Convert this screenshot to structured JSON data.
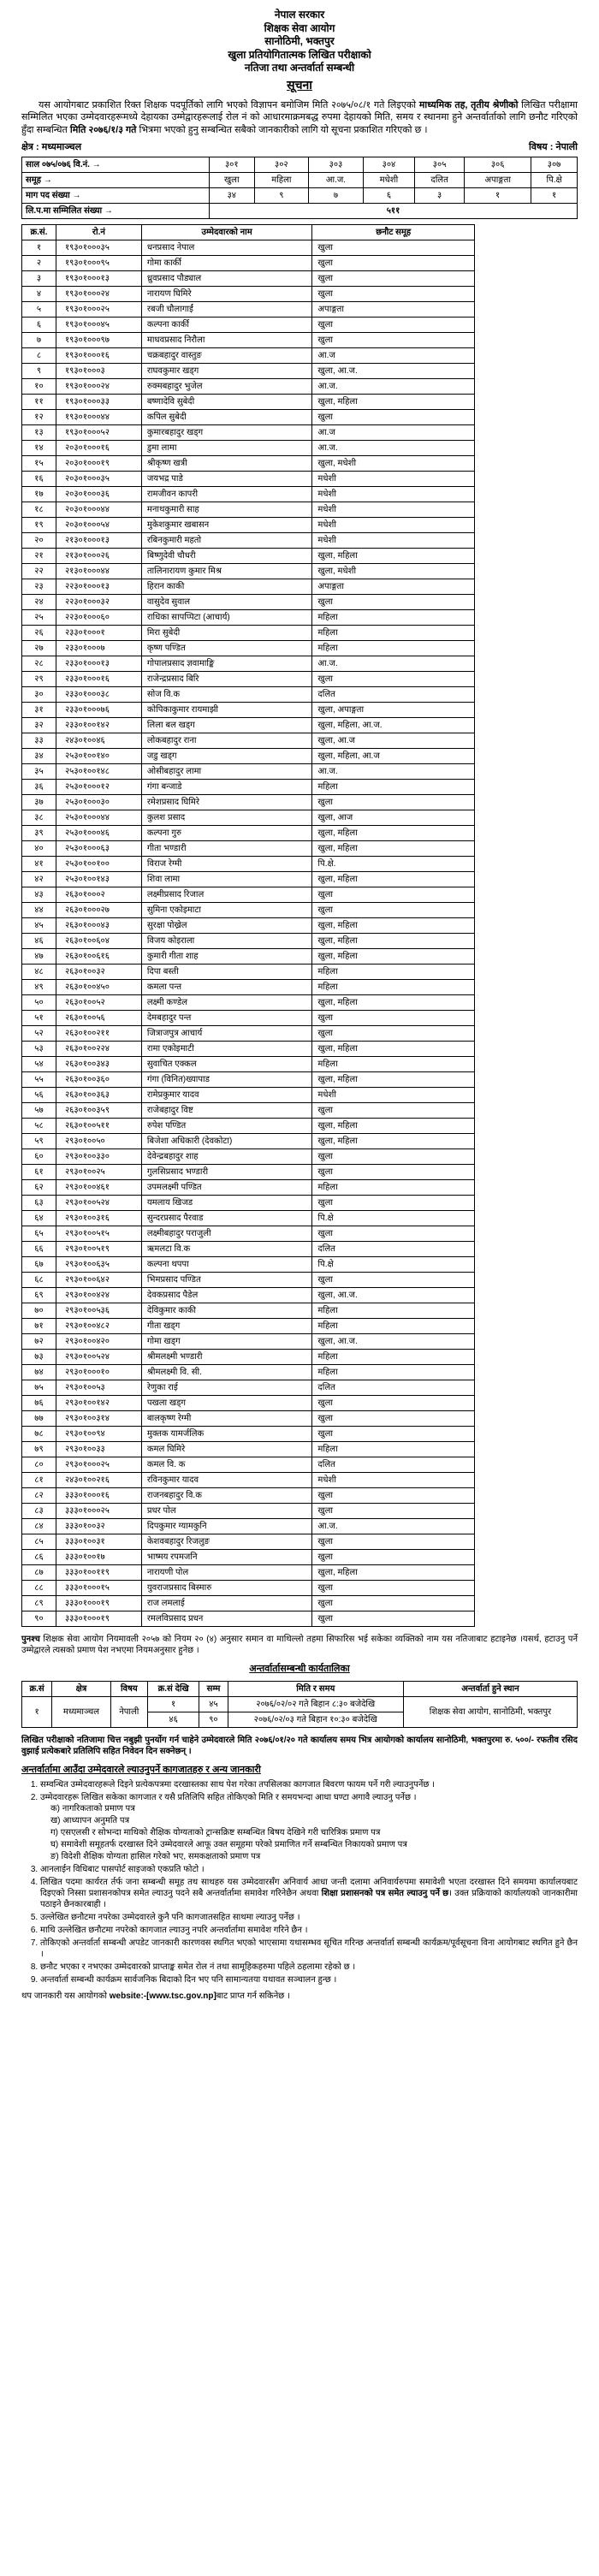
{
  "header": {
    "l1": "नेपाल सरकार",
    "l2": "शिक्षक सेवा आयोग",
    "l3": "सानोठिमी, भक्तपुर",
    "l4": "खुला प्रतियोगितात्मक लिखित परीक्षाको",
    "l5": "नतिजा तथा अन्तर्वार्ता सम्बन्धी",
    "l6": "सूचना"
  },
  "notice": "यस आयोगबाट प्रकाशित रिक्त शिक्षक पदपूर्तिको लागि भएको विज्ञापन बमोजिम मिति २०७५/०८/१ गते लिइएको <b>माध्यमिक तह, तृतीय श्रेणीको</b> लिखित परीक्षामा सम्मिलित भएका उम्मेदवारहरूमध्ये देहायका उम्मेद्वारहरूलाई रोल नं को आधारमाक्रमबद्ध रुपमा देहायको मिति, समय र स्थानमा हुने अन्तर्वार्ताको लागि छनौट गरिएको हुँदा सम्बन्धित <b>मिति २०७६/१/३ गते</b> भित्रमा भएको हुनु सम्बन्धित सबैको जानकारीको लागि यो सूचना प्रकाशित गरिएको छ ।",
  "meta": {
    "level_label": "क्षेत्र :",
    "level": "मध्यमाञ्चल",
    "subject_label": "विषय :",
    "subject": "नेपाली"
  },
  "vacancy": {
    "year_label": "साल  ०७५/०७६  वि.नं.  →",
    "cols": [
      "३०१",
      "३०२",
      "३०३",
      "३०४",
      "३०५",
      "३०६",
      "३०७"
    ],
    "group_label": "समूह  →",
    "groups": [
      "खुला",
      "महिला",
      "आ.ज.",
      "मधेशी",
      "दलित",
      "अपाङ्गता",
      "पि.क्षे"
    ],
    "demand_label": "माग पद संख्या  →",
    "demand": [
      "३४",
      "९",
      "७",
      "६",
      "३",
      "१",
      "१"
    ],
    "exam_label": "लि.प.मा सम्मिलित संख्या  →",
    "exam_total": "५११"
  },
  "table": {
    "headers": [
      "क्र.सं.",
      "रो.नं",
      "उम्मेदवारको नाम",
      "छनौट समूह"
    ],
    "rows": [
      [
        "१",
        "१९३०१०००३५",
        "धनप्रसाद नेपाल",
        "खुला"
      ],
      [
        "२",
        "१९३०१०००९५",
        "गोमा कार्की",
        "खुला"
      ],
      [
        "३",
        "१९३०१०००१३",
        "ध्रुवप्रसाद पौड्याल",
        "खुला"
      ],
      [
        "४",
        "१९३०१०००२४",
        "नारायण घिमिरे",
        "खुला"
      ],
      [
        "५",
        "१९३०१०००२५",
        "रबजी चौलागाईं",
        "अपाङ्गता"
      ],
      [
        "६",
        "१९३०१०००४५",
        "कल्पना कार्की",
        "खुला"
      ],
      [
        "७",
        "१९३०१०००९७",
        "माधवप्रसाद निरौला",
        "खुला"
      ],
      [
        "८",
        "१९३०१०००१६",
        "चक्रबहादुर वास्तुङ",
        "आ.ज"
      ],
      [
        "९",
        "१९३०१०००३",
        "राघवकुमार खड्ग",
        "खुला, आ.ज."
      ],
      [
        "१०",
        "१९३०१०००२४",
        "रुक्मबहादुर भुजेल",
        "आ.ज."
      ],
      [
        "११",
        "१९३०१०००३३",
        "बष्णादेवि सुबेदी",
        "खुला, महिला"
      ],
      [
        "१२",
        "१९३०१०००४४",
        "कपिल सुबेदी",
        "खुला"
      ],
      [
        "१३",
        "१९३०१०००५२",
        "कुमारबहादुर खड्ग",
        "आ.ज"
      ],
      [
        "१४",
        "२०३०१०००१६",
        "डुमा लामा",
        "आ.ज."
      ],
      [
        "१५",
        "२०३०१०००१९",
        "श्रीकृष्ण खत्री",
        "खुला, मधेशी"
      ],
      [
        "१६",
        "२०३०१०००३५",
        "जयभद्र पाडे",
        "मधेशी"
      ],
      [
        "१७",
        "२०३०१०००३६",
        "रामजीवन कापरी",
        "मधेशी"
      ],
      [
        "१८",
        "२०३०१०००४४",
        "मनाथकुमारी साह",
        "मधेशी"
      ],
      [
        "१९",
        "२०३०१०००५४",
        "मुकेशकुमार खबासन",
        "मधेशी"
      ],
      [
        "२०",
        "२१३०१०००१३",
        "रबिनकुमारी महतो",
        "मधेशी"
      ],
      [
        "२१",
        "२१३०१०००२६",
        "बिष्णुदेवी चौधरी",
        "खुला, महिला"
      ],
      [
        "२२",
        "२१३०१०००४४",
        "तालिनारायण कुमार मिश्र",
        "खुला, मधेशी"
      ],
      [
        "२३",
        "२२३०१०००१३",
        "हिरान काकी",
        "अपाङ्गता"
      ],
      [
        "२४",
        "२२३०१०००३२",
        "वासुदेव सुवाल",
        "खुला"
      ],
      [
        "२५",
        "२२३०१०००६०",
        "राधिका सापप्पिटा (आचार्य)",
        "महिला"
      ],
      [
        "२६",
        "२३३०१०००१",
        "मिरा सुबेदी",
        "महिला"
      ],
      [
        "२७",
        "२३३०१०००७",
        "कृष्ण पण्डित",
        "महिला"
      ],
      [
        "२८",
        "२३३०१०००१३",
        "गोपालप्रसाद ज्ञवामाङ्कि",
        "आ.ज."
      ],
      [
        "२९",
        "२३३०१०००१६",
        "राजेन्द्रप्रसाद बिरि",
        "खुला"
      ],
      [
        "३०",
        "२३३०१०००३८",
        "सोज वि.क",
        "दलित"
      ],
      [
        "३१",
        "२३३०१०००७६",
        "कोपिकाकुमार रायमाझी",
        "खुला, अपाङ्गता"
      ],
      [
        "३२",
        "२३३०१००१४२",
        "लिला बल खड्ग",
        "खुला, महिला, आ.ज."
      ],
      [
        "३३",
        "२४३०१००४६",
        "लोकबहादुर राना",
        "खुला, आ.ज"
      ],
      [
        "३४",
        "२५३०१००१४०",
        "जडु खड्ग",
        "खुला, महिला, आ.ज"
      ],
      [
        "३५",
        "२५३०१००१४८",
        "ओसीबहादुर लामा",
        "आ.ज."
      ],
      [
        "३६",
        "२५३०१०००१२",
        "गंगा बन्जाडे",
        "महिला"
      ],
      [
        "३७",
        "२५३०१०००३०",
        "रमेशप्रसाद घिमिरे",
        "खुला"
      ],
      [
        "३८",
        "२५३०१०००४४",
        "कुलश प्रसाद",
        "खुला, आज"
      ],
      [
        "३९",
        "२५३०१०००४६",
        "कल्पना गुरु",
        "खुला, महिला"
      ],
      [
        "४०",
        "२५३०१०००६३",
        "गीता भण्डारी",
        "खुला, महिला"
      ],
      [
        "४१",
        "२५३०१००१००",
        "विराज रेग्मी",
        "पि.क्षे."
      ],
      [
        "४२",
        "२५३०१००१४३",
        "शिवा लामा",
        "खुला, महिला"
      ],
      [
        "४३",
        "२६३०१०००२",
        "लक्ष्मीप्रसाद रिजाल",
        "खुला"
      ],
      [
        "४४",
        "२६३०१०००२७",
        "सुमिना एकोइमाटा",
        "खुला"
      ],
      [
        "४५",
        "२६३०१०००४३",
        "सुरक्षा पोख्रेल",
        "खुला, महिला"
      ],
      [
        "४६",
        "२६३०१००६०४",
        "विजय कोइराला",
        "खुला, महिला"
      ],
      [
        "४७",
        "२६३०१००६१६",
        "कुमारी गीता शाह",
        "खुला, महिला"
      ],
      [
        "४८",
        "२६३०१००३२",
        "दिपा बस्ती",
        "महिला"
      ],
      [
        "४९",
        "२६३०१००४५०",
        "कमला पन्त",
        "महिला"
      ],
      [
        "५०",
        "२६३०१००५२",
        "लक्ष्मी कण्डेल",
        "खुला, महिला"
      ],
      [
        "५१",
        "२६३०१००५६",
        "देमबहादुर पन्त",
        "खुला"
      ],
      [
        "५२",
        "२६३०१००२११",
        "जित्राजपुत्र आचार्य",
        "खुला"
      ],
      [
        "५३",
        "२६३०१००२२४",
        "रामा एकोइमाटी",
        "खुला, महिला"
      ],
      [
        "५४",
        "२६३०१००३४३",
        "सुवाचित एक्कल",
        "महिला"
      ],
      [
        "५५",
        "२६३०१००३६०",
        "गंगा (विनित)ख्यापाड",
        "खुला, महिला"
      ],
      [
        "५६",
        "२६३०१००३६३",
        "रामेप्रकुमार यादव",
        "मधेशी"
      ],
      [
        "५७",
        "२६३०१००३५९",
        "राजेबहादुर विष्ट",
        "खुला"
      ],
      [
        "५८",
        "२६३०१००५११",
        "रुपेश पण्डित",
        "खुला, महिला"
      ],
      [
        "५९",
        "२९३०१००५०",
        "बिजेशा अधिकारी (देवकोटा)",
        "खुला, महिला"
      ],
      [
        "६०",
        "२९३०१००३३०",
        "देवेन्द्रबहादुर शाह",
        "खुला"
      ],
      [
        "६१",
        "२९३०१००२५",
        "गुलसिप्रसाद भण्डारी",
        "खुला"
      ],
      [
        "६२",
        "२९३०१००४६१",
        "उपमलक्ष्मी पण्डित",
        "महिला"
      ],
      [
        "६३",
        "२९३०१००५२४",
        "यमलाय खिजड",
        "खुला"
      ],
      [
        "६४",
        "२९३०१००३१६",
        "सुन्दरप्रसाद पैरवाड",
        "पि.क्षे"
      ],
      [
        "६५",
        "२९३०१००५१५",
        "लक्ष्मीबहादुर पराजुली",
        "खुला"
      ],
      [
        "६६",
        "२९३०१००५१९",
        "ऋमलटा वि.क",
        "दलित"
      ],
      [
        "६७",
        "२९३०१००६३५",
        "कल्पना थपपा",
        "पि.क्षे"
      ],
      [
        "६८",
        "२९३०१००६४२",
        "भिमप्रसाद पण्डित",
        "खुला"
      ],
      [
        "६९",
        "२९३०१००४२४",
        "देवकप्रसाद पैडेल",
        "खुला, आ.ज."
      ],
      [
        "७०",
        "२९३०१००५३६",
        "देविकुमार काकी",
        "महिला"
      ],
      [
        "७१",
        "२९३०१००४८२",
        "गीता खड्ग",
        "महिला"
      ],
      [
        "७२",
        "२९३०१००४२०",
        "गोमा खड्ग",
        "खुला, आ.ज."
      ],
      [
        "७३",
        "२९३०१००५२४",
        "श्रीमलक्ष्मी भण्डारी",
        "महिला"
      ],
      [
        "७४",
        "२९३०१०००१०",
        "श्रीमलक्ष्मी वि. सी.",
        "महिला"
      ],
      [
        "७५",
        "२९३०१००५३",
        "रेणुका राई",
        "दलित"
      ],
      [
        "७६",
        "२९३०१००१४२",
        "पखला खड्ग",
        "खुला"
      ],
      [
        "७७",
        "२९३०१००३१४",
        "बालकृष्ण रेग्मी",
        "खुला"
      ],
      [
        "७८",
        "२९३०१००९४",
        "मुक्तक यामर्जलिक",
        "खुला"
      ],
      [
        "७९",
        "२९३०१००३३",
        "कमल घिमिरे",
        "महिला"
      ],
      [
        "८०",
        "२९३०१०००२५",
        "कमल वि. क",
        "दलित"
      ],
      [
        "८१",
        "२४३०१००२१६",
        "रविनकुमार यादव",
        "मधेशी"
      ],
      [
        "८२",
        "३३३०१०००१६",
        "राजनबहादुर वि.क",
        "खुला"
      ],
      [
        "८३",
        "३३३०१०००२५",
        "प्रधर पोल",
        "खुला"
      ],
      [
        "८४",
        "३३३०१००३२",
        "दिपकुमार ग्यामकुनि",
        "आ.ज."
      ],
      [
        "८५",
        "३३३०१००३१",
        "केशवबहादुर रिजलुङ",
        "खुला"
      ],
      [
        "८६",
        "३३३०१००१७",
        "भाष्मय रपमजनि",
        "खुला"
      ],
      [
        "८७",
        "३३३०१००११९",
        "नारायणी पोल",
        "खुला, महिला"
      ],
      [
        "८८",
        "३३३०१०००१५",
        "युवराजप्रसाद बिस्मारु",
        "खुला"
      ],
      [
        "८९",
        "३३३०१०००१९",
        "राज लमलाई",
        "खुला"
      ],
      [
        "९०",
        "३३३०१०००१९",
        "रमलविप्रसाद प्रधन",
        "खुला"
      ]
    ]
  },
  "footnote": "<b>पुनश्च</b> शिक्षक सेवा आयोग नियमावली २०५७ को नियम २० (४) अनुसार समान वा माथिल्लो तहमा सिफारिस भई सकेका व्यक्तिको नाम यस नतिजाबाट हटाइनेछ ।यसर्थ, हटाउनु पर्ने उम्मेद्वारले त्यसको प्रमाण पेश नभएमा नियमअनुसार हुनेछ ।",
  "interview": {
    "title": "अन्तर्वार्तासम्बन्धी कार्यतालिका",
    "headers": [
      "क्र.सं",
      "क्षेत्र",
      "विषय",
      "क्र.सं",
      "देखि",
      "सम्म",
      "मिति र समय",
      "अन्तर्वार्ता हुने स्थान"
    ],
    "row": {
      "sn": "१",
      "region": "मध्यमाञ्चल",
      "subject": "नेपाली",
      "r1_sn": "१",
      "r1_from_to": "४५",
      "r1_date": "२०७६/०२/०२ गते बिहान ८:३० बजेदेखि",
      "r2_sn": "४६",
      "r2_from_to": "९०",
      "r2_date": "२०७६/०२/०३ गते बिहान १०:३० बजेदेखि",
      "venue": "शिक्षक सेवा आयोग, सानोठिमी, भक्तपुर"
    }
  },
  "pass_note": "<b>लिखित परीक्षाको नतिजामा चित्त नबुझी पुनर्योग गर्न चाहेने उम्मेदवारले मिति २०७६/०१/२० गते कार्यालय समय भित्र आयोगको कार्यालय सानोठिमी, भक्तपुरमा रु. ५००/- रफतीव रसिद वुझाई प्रत्येकबारे प्रतिलिपि सहित निवेदन दिन सक्नेछन् ।</b>",
  "info": {
    "title": "अन्तर्वार्तामा आउँदा उम्मेदवारले ल्याउनुपर्ने कागजातहरु र अन्य जानकारी",
    "items": [
      "सम्वन्धित उम्मेदवारहरूले दिइने प्रत्येकपत्रमा दरखास्तका साथ पेश गरेका तपसिलका कागजात बिवरण फायम पर्ने गरी ल्याउनुपर्नेछ ।",
      " उम्मेदवारहरू लिखित सकेका कागजात र यसै प्रतिलिपि सहित तोकिएको मिति र समयभन्दा आधा घण्टा अगावै ल्याउनु पर्नेछ ।"
    ],
    "sub": [
      "क)  नागरिकताको प्रमाण पत्र",
      "ख)  आध्यापन अनुमति पत्र",
      "ग)  एसएलसी र सोभन्दा माथिको शैक्षिक योग्यताको ट्रान्सक्रिष्ट सम्बन्धित बिषय देखिने गरी चारित्रिक प्रमाण पत्र",
      "घ)  समावेशी समूहतर्फ दरखास्त दिने उम्मेदवारले आफू उक्त समूहमा परेको प्रमाणित गर्ने सम्बन्धित निकायको प्रमाण पत्र",
      "ङ)  विदेशी शैक्षिक योग्यता हासिल गरेको भए, समकक्षताको प्रमाण पत्र"
    ],
    "items2": [
      "आनलाईन विधिबाट पासपोर्ट साइजको एकप्रति फोटो ।",
      "लिखित पदमा कार्यरत र्तर्फ जना सम्बन्धी समूह तथ साथहरु यस उम्मेदवारसँग अनिवार्य आधा जन्ती दलामा अनिवार्यरुपमा समावेशी भएता दरखास्त दिने समयमा कार्यालयबाट दिइएको निस्सा प्रशासनकोपत्र समेत ल्याउनु पदने सबै अन्तर्वार्तामा समावेश गरिनेछैन अथवा <b>शिक्षा प्रशासनको पत्र समेत ल्याउनु पर्ने छ</b>। उक्त प्रक्रियाको कार्यालयको जानकारीमा पठाइने छैनकारबाही ।",
      "उल्लेखित छनौटमा नपरेका उम्मेदवारले कुनै पनि कागजातसहित साथमा ल्याउनु पर्नेछ ।",
      "माथि उल्लेखित छनौटमा नपरेको कागजात ल्याउनु नपरि अन्तर्वार्तामा समावेश गरिने छैन ।",
      "तोकिएको अन्तर्वार्ता सम्बन्धी अपडेट जानकारी कारणवस स्थगित भएको भाएसामा यथासम्भव सूचित गरिन्छ अन्तर्वार्ता सम्बन्धी कार्यक्रम/पूर्वसूचना विना आयोगबाट स्थगित हुने छैन ।",
      "छनौट भएका र नभएका उम्मेदवारको प्राप्ताङ्क समेत रोल नं तथा सामूहिकहरुमा पहिले ठहलामा रहेको छ ।",
      "अन्तर्वार्ता सम्बन्धी कार्यक्रम सार्वजनिक बिदाको दिन भए पनि सामान्यतया यथावत सञ्चालन हुन्छ ।"
    ],
    "final": "थप जानकारी यस आयोगको <span class='web'>website:-[www.tsc.gov.np]</span>बाट प्राप्त गर्न सकिनेछ ।"
  }
}
